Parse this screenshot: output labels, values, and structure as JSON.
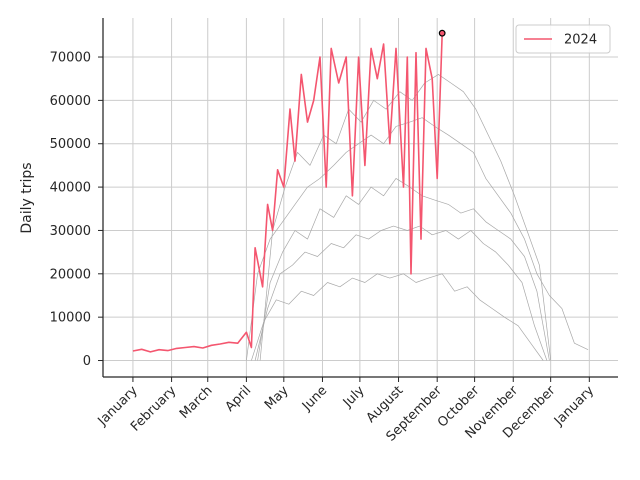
{
  "chart_data": {
    "type": "line",
    "title": "",
    "xlabel": "",
    "ylabel": "Daily trips",
    "x_tick_labels": [
      "January",
      "February",
      "March",
      "April",
      "May",
      "June",
      "July",
      "August",
      "September",
      "October",
      "November",
      "December",
      "January"
    ],
    "y_ticks": [
      0,
      10000,
      20000,
      30000,
      40000,
      50000,
      60000,
      70000
    ],
    "ylim": [
      -3800,
      79000
    ],
    "grid": true,
    "legend": {
      "placement": "top-right",
      "entries": [
        "2024"
      ]
    },
    "colors": {
      "highlight": "#f4566f",
      "background_series": "#a8a8a8",
      "axis": "#262626",
      "grid": "#cccccc"
    },
    "series": [
      {
        "name": "2024",
        "highlight": true,
        "points": [
          [
            "2024-01-01",
            2200
          ],
          [
            "2024-01-08",
            2600
          ],
          [
            "2024-01-15",
            2000
          ],
          [
            "2024-01-22",
            2500
          ],
          [
            "2024-01-29",
            2300
          ],
          [
            "2024-02-05",
            2800
          ],
          [
            "2024-02-12",
            3000
          ],
          [
            "2024-02-19",
            3200
          ],
          [
            "2024-02-26",
            2900
          ],
          [
            "2024-03-04",
            3500
          ],
          [
            "2024-03-11",
            3800
          ],
          [
            "2024-03-18",
            4200
          ],
          [
            "2024-03-25",
            4000
          ],
          [
            "2024-04-01",
            6500
          ],
          [
            "2024-04-05",
            3000
          ],
          [
            "2024-04-08",
            26000
          ],
          [
            "2024-04-14",
            17000
          ],
          [
            "2024-04-18",
            36000
          ],
          [
            "2024-04-22",
            30000
          ],
          [
            "2024-04-26",
            44000
          ],
          [
            "2024-05-01",
            40000
          ],
          [
            "2024-05-06",
            58000
          ],
          [
            "2024-05-10",
            46000
          ],
          [
            "2024-05-15",
            66000
          ],
          [
            "2024-05-20",
            55000
          ],
          [
            "2024-05-25",
            60000
          ],
          [
            "2024-05-30",
            70000
          ],
          [
            "2024-06-04",
            40000
          ],
          [
            "2024-06-08",
            72000
          ],
          [
            "2024-06-14",
            64000
          ],
          [
            "2024-06-20",
            70000
          ],
          [
            "2024-06-25",
            38000
          ],
          [
            "2024-06-30",
            70000
          ],
          [
            "2024-07-05",
            45000
          ],
          [
            "2024-07-10",
            72000
          ],
          [
            "2024-07-15",
            65000
          ],
          [
            "2024-07-20",
            73000
          ],
          [
            "2024-07-25",
            50000
          ],
          [
            "2024-07-30",
            72000
          ],
          [
            "2024-08-05",
            40000
          ],
          [
            "2024-08-08",
            70000
          ],
          [
            "2024-08-11",
            20000
          ],
          [
            "2024-08-15",
            71000
          ],
          [
            "2024-08-19",
            28000
          ],
          [
            "2024-08-23",
            72000
          ],
          [
            "2024-08-28",
            65000
          ],
          [
            "2024-09-01",
            42000
          ],
          [
            "2024-09-05",
            75500
          ]
        ],
        "last_point_marker": true
      },
      {
        "name": "",
        "points": [
          [
            "2024-04-05",
            0
          ],
          [
            "2024-04-15",
            9000
          ],
          [
            "2024-04-25",
            14000
          ],
          [
            "2024-05-05",
            13000
          ],
          [
            "2024-05-15",
            16000
          ],
          [
            "2024-05-25",
            15000
          ],
          [
            "2024-06-05",
            18000
          ],
          [
            "2024-06-15",
            17000
          ],
          [
            "2024-06-25",
            19000
          ],
          [
            "2024-07-05",
            18000
          ],
          [
            "2024-07-15",
            20000
          ],
          [
            "2024-07-25",
            19000
          ],
          [
            "2024-08-05",
            20000
          ],
          [
            "2024-08-15",
            18000
          ],
          [
            "2024-08-25",
            19000
          ],
          [
            "2024-09-05",
            20000
          ],
          [
            "2024-09-15",
            16000
          ],
          [
            "2024-09-25",
            17000
          ],
          [
            "2024-10-05",
            14000
          ],
          [
            "2024-10-15",
            12000
          ],
          [
            "2024-10-25",
            10000
          ],
          [
            "2024-11-05",
            8000
          ],
          [
            "2024-11-15",
            4000
          ],
          [
            "2024-11-25",
            0
          ]
        ]
      },
      {
        "name": "",
        "points": [
          [
            "2024-04-08",
            0
          ],
          [
            "2024-04-18",
            12000
          ],
          [
            "2024-04-28",
            20000
          ],
          [
            "2024-05-08",
            22000
          ],
          [
            "2024-05-18",
            25000
          ],
          [
            "2024-05-28",
            24000
          ],
          [
            "2024-06-08",
            27000
          ],
          [
            "2024-06-18",
            26000
          ],
          [
            "2024-06-28",
            29000
          ],
          [
            "2024-07-08",
            28000
          ],
          [
            "2024-07-18",
            30000
          ],
          [
            "2024-07-28",
            31000
          ],
          [
            "2024-08-08",
            30000
          ],
          [
            "2024-08-18",
            31000
          ],
          [
            "2024-08-28",
            29000
          ],
          [
            "2024-09-08",
            30000
          ],
          [
            "2024-09-18",
            28000
          ],
          [
            "2024-09-28",
            30000
          ],
          [
            "2024-10-08",
            27000
          ],
          [
            "2024-10-18",
            25000
          ],
          [
            "2024-10-28",
            22000
          ],
          [
            "2024-11-08",
            18000
          ],
          [
            "2024-11-18",
            8000
          ],
          [
            "2024-11-28",
            0
          ]
        ]
      },
      {
        "name": "",
        "points": [
          [
            "2024-04-10",
            0
          ],
          [
            "2024-04-20",
            18000
          ],
          [
            "2024-04-30",
            25000
          ],
          [
            "2024-05-10",
            30000
          ],
          [
            "2024-05-20",
            28000
          ],
          [
            "2024-05-30",
            35000
          ],
          [
            "2024-06-10",
            33000
          ],
          [
            "2024-06-20",
            38000
          ],
          [
            "2024-06-30",
            36000
          ],
          [
            "2024-07-10",
            40000
          ],
          [
            "2024-07-20",
            38000
          ],
          [
            "2024-07-30",
            42000
          ],
          [
            "2024-08-10",
            40000
          ],
          [
            "2024-08-20",
            38000
          ],
          [
            "2024-08-30",
            37000
          ],
          [
            "2024-09-10",
            36000
          ],
          [
            "2024-09-20",
            34000
          ],
          [
            "2024-09-30",
            35000
          ],
          [
            "2024-10-10",
            32000
          ],
          [
            "2024-10-20",
            30000
          ],
          [
            "2024-10-30",
            28000
          ],
          [
            "2024-11-10",
            24000
          ],
          [
            "2024-11-20",
            16000
          ],
          [
            "2024-11-30",
            0
          ]
        ]
      },
      {
        "name": "",
        "points": [
          [
            "2024-04-12",
            0
          ],
          [
            "2024-04-22",
            30000
          ],
          [
            "2024-05-02",
            40000
          ],
          [
            "2024-05-12",
            48000
          ],
          [
            "2024-05-22",
            45000
          ],
          [
            "2024-06-02",
            52000
          ],
          [
            "2024-06-12",
            50000
          ],
          [
            "2024-06-22",
            58000
          ],
          [
            "2024-07-02",
            55000
          ],
          [
            "2024-07-12",
            60000
          ],
          [
            "2024-07-22",
            58000
          ],
          [
            "2024-08-02",
            62000
          ],
          [
            "2024-08-12",
            60000
          ],
          [
            "2024-08-22",
            64000
          ],
          [
            "2024-09-02",
            66000
          ],
          [
            "2024-09-12",
            64000
          ],
          [
            "2024-09-22",
            62000
          ],
          [
            "2024-10-02",
            58000
          ],
          [
            "2024-10-12",
            52000
          ],
          [
            "2024-10-22",
            46000
          ],
          [
            "2024-11-02",
            38000
          ],
          [
            "2024-11-12",
            30000
          ],
          [
            "2024-11-22",
            22000
          ],
          [
            "2024-12-01",
            0
          ]
        ]
      },
      {
        "name": "",
        "points": [
          [
            "2024-04-01",
            0
          ],
          [
            "2024-04-10",
            20000
          ],
          [
            "2024-04-20",
            28000
          ],
          [
            "2024-04-30",
            32000
          ],
          [
            "2024-05-10",
            36000
          ],
          [
            "2024-05-20",
            40000
          ],
          [
            "2024-05-30",
            42000
          ],
          [
            "2024-06-10",
            45000
          ],
          [
            "2024-06-20",
            48000
          ],
          [
            "2024-06-30",
            50000
          ],
          [
            "2024-07-10",
            52000
          ],
          [
            "2024-07-20",
            50000
          ],
          [
            "2024-07-30",
            54000
          ],
          [
            "2024-08-10",
            55000
          ],
          [
            "2024-08-20",
            56000
          ],
          [
            "2024-08-30",
            54000
          ],
          [
            "2024-09-10",
            52000
          ],
          [
            "2024-09-20",
            50000
          ],
          [
            "2024-09-30",
            48000
          ],
          [
            "2024-10-10",
            42000
          ],
          [
            "2024-10-20",
            38000
          ],
          [
            "2024-10-30",
            34000
          ],
          [
            "2024-11-10",
            28000
          ],
          [
            "2024-11-20",
            20000
          ],
          [
            "2024-11-30",
            15000
          ],
          [
            "2024-12-10",
            12000
          ],
          [
            "2024-12-20",
            4000
          ],
          [
            "2024-12-31",
            2500
          ]
        ]
      }
    ]
  }
}
